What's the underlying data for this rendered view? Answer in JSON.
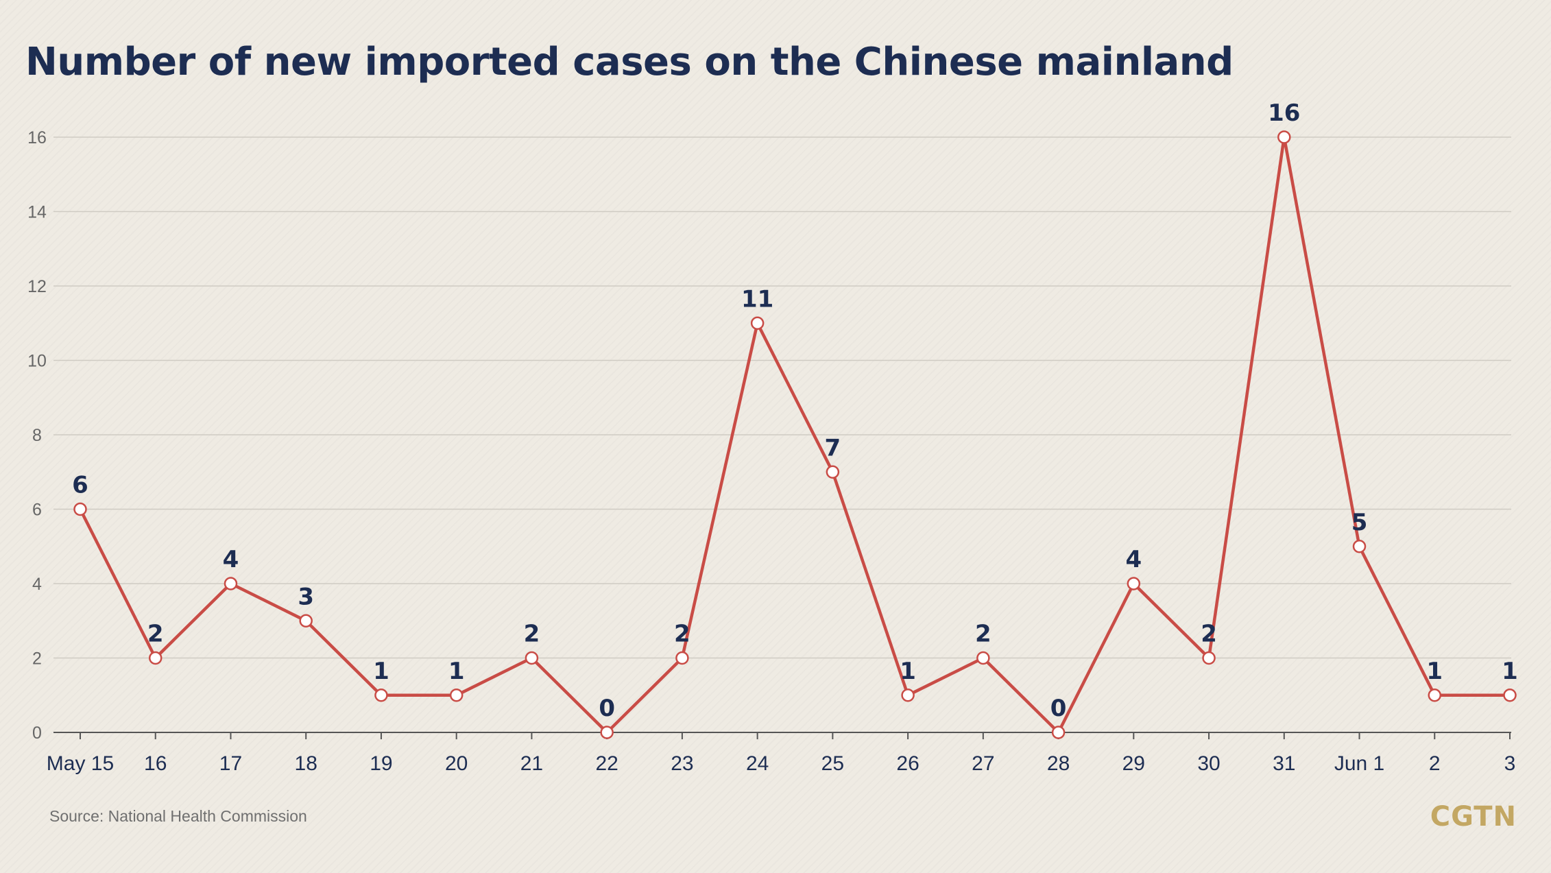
{
  "source": "Source: National Health Commission",
  "brand": "CGTN",
  "chart_data": {
    "type": "line",
    "title": "Number of new imported cases on the Chinese mainland",
    "xlabel": "",
    "ylabel": "",
    "categories": [
      "May 15",
      "16",
      "17",
      "18",
      "19",
      "20",
      "21",
      "22",
      "23",
      "24",
      "25",
      "26",
      "27",
      "28",
      "29",
      "30",
      "31",
      "Jun 1",
      "2",
      "3"
    ],
    "series": [
      {
        "values": [
          6,
          2,
          4,
          3,
          1,
          1,
          2,
          0,
          2,
          11,
          7,
          1,
          2,
          0,
          4,
          2,
          16,
          5,
          1,
          1
        ]
      }
    ],
    "data_labels": [
      "6",
      "2",
      "4",
      "3",
      "1",
      "1",
      "2",
      "0",
      "2",
      "11",
      "7",
      "1",
      "2",
      "0",
      "4",
      "2",
      "16",
      "5",
      "1",
      "1"
    ],
    "ylim": [
      0,
      16
    ],
    "yticks": [
      0,
      2,
      4,
      6,
      8,
      10,
      12,
      14,
      16
    ],
    "ytick_labels": [
      "0",
      "2",
      "4",
      "6",
      "8",
      "10",
      "12",
      "14",
      "16"
    ],
    "grid": true,
    "legend": "none",
    "colors": {
      "line": "#c94c46",
      "marker_fill": "#ffffff",
      "label": "#1d2d52",
      "grid": "#cfcbc3",
      "axis": "#555555",
      "tick_text": "#666666",
      "x_text": "#1d2d52"
    }
  }
}
